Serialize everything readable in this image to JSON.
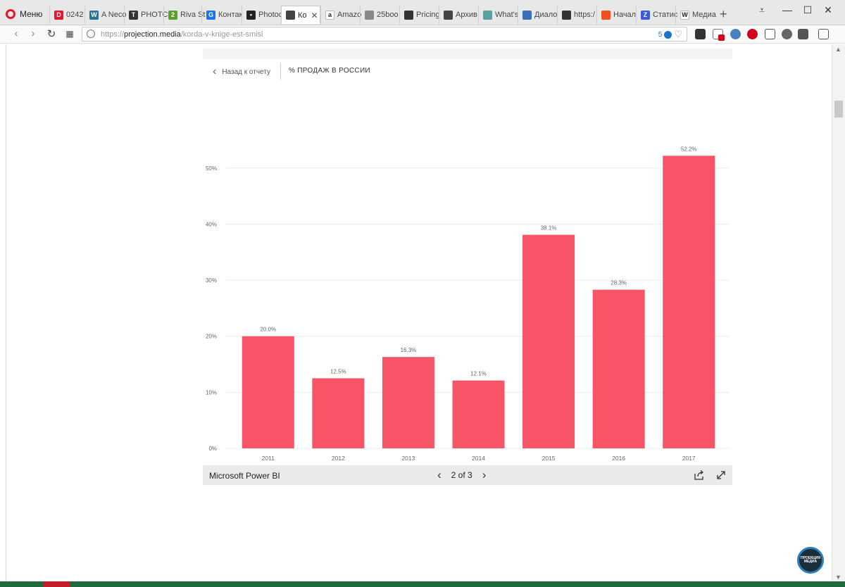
{
  "browser": {
    "menu_label": "Меню",
    "tabs": [
      {
        "label": "0242",
        "fav_color": "#e5162c",
        "fav_glyph": "D",
        "icon": "page-icon"
      },
      {
        "label": "A Neco",
        "fav_color": "#21759b",
        "fav_glyph": "W",
        "icon": "wordpress-icon"
      },
      {
        "label": "PHOTC",
        "fav_color": "#333333",
        "fav_glyph": "T",
        "icon": "nyt-icon"
      },
      {
        "label": "Riva St",
        "fav_color": "#5aa02c",
        "fav_glyph": "2",
        "icon": "page-icon"
      },
      {
        "label": "Контак",
        "fav_color": "#1a73e8",
        "fav_glyph": "G",
        "icon": "g-icon"
      },
      {
        "label": "Photoc",
        "fav_color": "#222222",
        "fav_glyph": "•",
        "icon": "page-icon"
      },
      {
        "label": "Ко",
        "fav_color": "#444444",
        "fav_glyph": "",
        "icon": "page-icon",
        "active": true
      },
      {
        "label": "Amazo",
        "fav_color": "#ffffff",
        "fav_glyph": "a",
        "icon": "amazon-icon"
      },
      {
        "label": "25boo",
        "fav_color": "#888888",
        "fav_glyph": "",
        "icon": "document-icon"
      },
      {
        "label": "Pricing",
        "fav_color": "#333333",
        "fav_glyph": "",
        "icon": "bars-icon"
      },
      {
        "label": "Архив",
        "fav_color": "#444444",
        "fav_glyph": "",
        "icon": "page-icon"
      },
      {
        "label": "What's",
        "fav_color": "#5aa0a0",
        "fav_glyph": "",
        "icon": "page-icon"
      },
      {
        "label": "Диало",
        "fav_color": "#3b6fb6",
        "fav_glyph": "",
        "icon": "page-icon"
      },
      {
        "label": "https:/",
        "fav_color": "#333333",
        "fav_glyph": "",
        "icon": "bars-icon"
      },
      {
        "label": "Начал",
        "fav_color": "#f25022",
        "fav_glyph": "",
        "icon": "windows-icon"
      },
      {
        "label": "Статис",
        "fav_color": "#3b5bdb",
        "fav_glyph": "Z",
        "icon": "page-icon"
      },
      {
        "label": "Медиа",
        "fav_color": "#ffffff",
        "fav_glyph": "W",
        "icon": "wikipedia-icon"
      }
    ],
    "url": {
      "scheme": "https://",
      "host": "projection.media",
      "path": "/korda-v-knige-est-smisl",
      "badge_count": "5"
    }
  },
  "report": {
    "back_label": "Назад к отчету",
    "visual_title": "% ПРОДАЖ В РОССИИ",
    "footer_brand": "Microsoft Power BI",
    "page_indicator": "2 of 3"
  },
  "colors": {
    "bar": "#f75467",
    "grid": "#ececec",
    "label": "#666666"
  },
  "chart_data": {
    "type": "bar",
    "title": "% ПРОДАЖ В РОССИИ",
    "categories": [
      "2011",
      "2012",
      "2013",
      "2014",
      "2015",
      "2016",
      "2017"
    ],
    "values": [
      20.0,
      12.5,
      16.3,
      12.1,
      38.1,
      28.3,
      52.2
    ],
    "data_labels": [
      "20.0%",
      "12.5%",
      "16.3%",
      "12.1%",
      "38.1%",
      "28.3%",
      "52.2%"
    ],
    "yticks": [
      0,
      10,
      20,
      30,
      40,
      50
    ],
    "ytick_labels": [
      "0%",
      "10%",
      "20%",
      "30%",
      "40%",
      "50%"
    ],
    "ylim": [
      0,
      55
    ],
    "grid": true,
    "legend": "none"
  },
  "fab_label": "ПРОЕКЦИЯ МЕДИА"
}
